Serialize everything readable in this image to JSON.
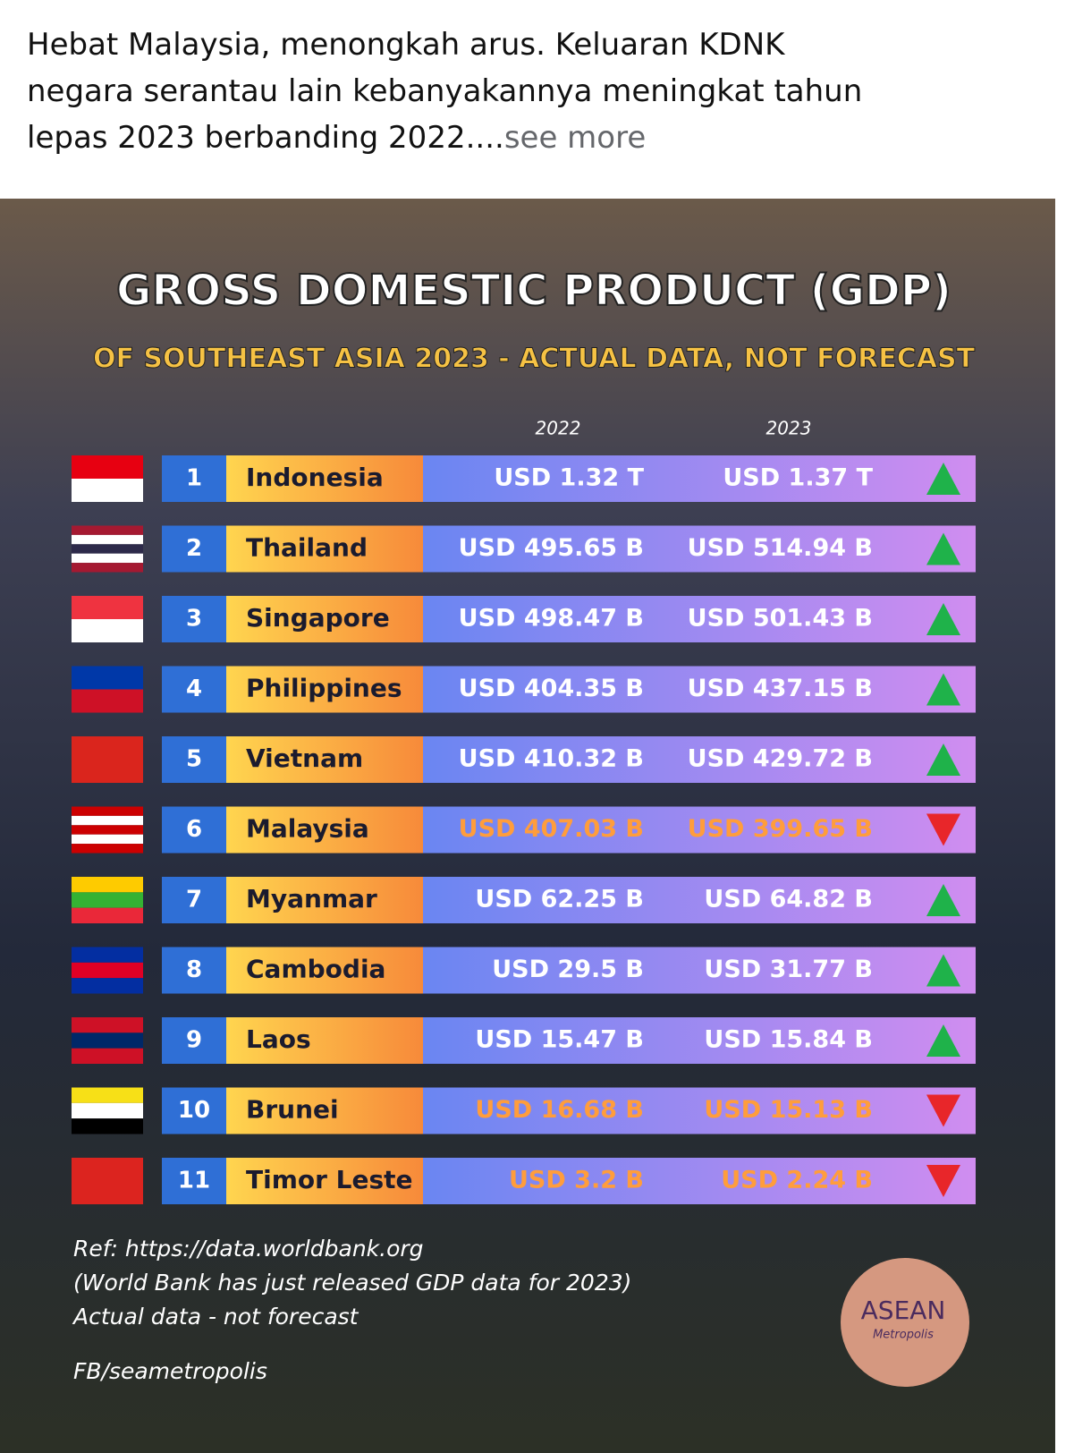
{
  "post": {
    "text": "Hebat Malaysia, menongkah arus. Keluaran KDNK negara serantau lain kebanyakannya meningkat tahun lepas 2023 berbanding 2022....",
    "see_more": "see more"
  },
  "infographic": {
    "title": "GROSS DOMESTIC PRODUCT (GDP)",
    "subtitle": "OF SOUTHEAST ASIA 2023 - ACTUAL DATA, NOT FORECAST",
    "columns": [
      "2022",
      "2023"
    ],
    "rows": [
      {
        "rank": "1",
        "country": "Indonesia",
        "gdp_2022": "USD 1.32 T",
        "gdp_2023": "USD 1.37 T",
        "trend": "up"
      },
      {
        "rank": "2",
        "country": "Thailand",
        "gdp_2022": "USD 495.65 B",
        "gdp_2023": "USD 514.94 B",
        "trend": "up"
      },
      {
        "rank": "3",
        "country": "Singapore",
        "gdp_2022": "USD 498.47 B",
        "gdp_2023": "USD 501.43 B",
        "trend": "up"
      },
      {
        "rank": "4",
        "country": "Philippines",
        "gdp_2022": "USD 404.35 B",
        "gdp_2023": "USD 437.15 B",
        "trend": "up"
      },
      {
        "rank": "5",
        "country": "Vietnam",
        "gdp_2022": "USD 410.32 B",
        "gdp_2023": "USD 429.72 B",
        "trend": "up"
      },
      {
        "rank": "6",
        "country": "Malaysia",
        "gdp_2022": "USD 407.03 B",
        "gdp_2023": "USD 399.65 B",
        "trend": "down"
      },
      {
        "rank": "7",
        "country": "Myanmar",
        "gdp_2022": "USD 62.25 B",
        "gdp_2023": "USD 64.82 B",
        "trend": "up"
      },
      {
        "rank": "8",
        "country": "Cambodia",
        "gdp_2022": "USD 29.5 B",
        "gdp_2023": "USD 31.77 B",
        "trend": "up"
      },
      {
        "rank": "9",
        "country": "Laos",
        "gdp_2022": "USD 15.47 B",
        "gdp_2023": "USD 15.84 B",
        "trend": "up"
      },
      {
        "rank": "10",
        "country": "Brunei",
        "gdp_2022": "USD 16.68 B",
        "gdp_2023": "USD 15.13 B",
        "trend": "down"
      },
      {
        "rank": "11",
        "country": "Timor Leste",
        "gdp_2022": "USD 3.2 B",
        "gdp_2023": "USD 2.24 B",
        "trend": "down"
      }
    ],
    "references": [
      "Ref: https://data.worldbank.org",
      "(World Bank has just released GDP data for 2023)",
      "Actual data - not forecast"
    ],
    "credit": "FB/seametropolis",
    "logo": {
      "name": "ASEAN",
      "tagline": "Metropolis"
    }
  }
}
